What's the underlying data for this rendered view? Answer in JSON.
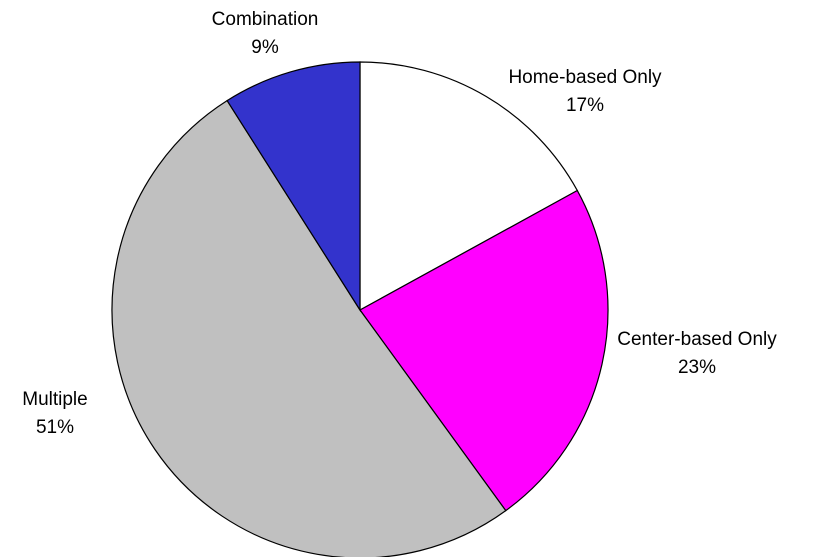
{
  "chart_data": {
    "type": "pie",
    "categories": [
      "Home-based Only",
      "Center-based Only",
      "Multiple",
      "Combination"
    ],
    "values": [
      17,
      23,
      51,
      9
    ],
    "value_labels": [
      "17%",
      "23%",
      "51%",
      "9%"
    ],
    "colors": [
      "#ffffff",
      "#ff00ff",
      "#c0c0c0",
      "#3333cc"
    ]
  }
}
